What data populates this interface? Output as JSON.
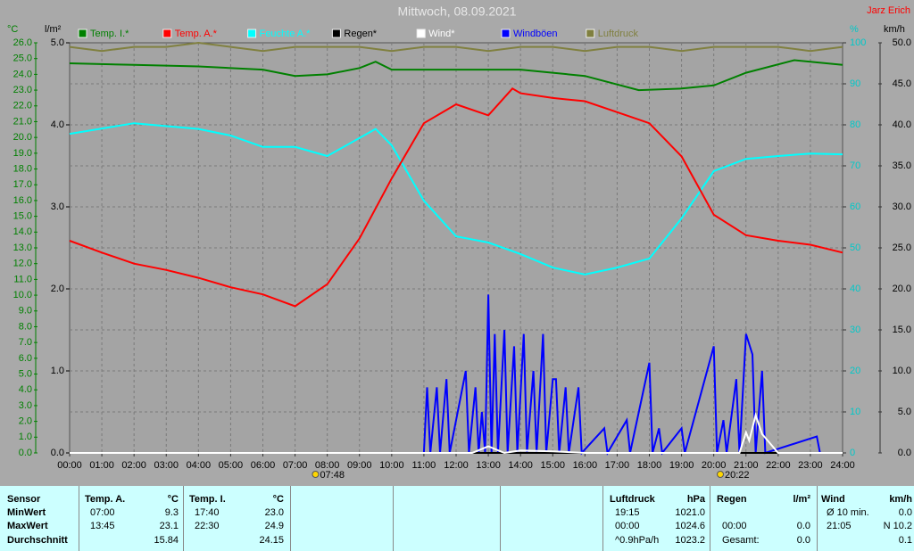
{
  "chart_data": {
    "type": "line",
    "title": "Mittwoch, 08.09.2021",
    "author": "Jarz Erich",
    "ylabel": "°C",
    "y_rain_label": "l/m²",
    "y2label": "%",
    "y3label": "km/h",
    "xlim": [
      0,
      24
    ],
    "xticks": [
      {
        "value": 0,
        "label": "00:00"
      },
      {
        "value": 1,
        "label": "01:00"
      },
      {
        "value": 2,
        "label": "02:00"
      },
      {
        "value": 3,
        "label": "03:00"
      },
      {
        "value": 4,
        "label": "04:00"
      },
      {
        "value": 5,
        "label": "05:00"
      },
      {
        "value": 6,
        "label": "06:00"
      },
      {
        "value": 7,
        "label": "07:00"
      },
      {
        "value": 8,
        "label": "08:00"
      },
      {
        "value": 9,
        "label": "09:00"
      },
      {
        "value": 10,
        "label": "10:00"
      },
      {
        "value": 11,
        "label": "11:00"
      },
      {
        "value": 12,
        "label": "12:00"
      },
      {
        "value": 13,
        "label": "13:00"
      },
      {
        "value": 14,
        "label": "14:00"
      },
      {
        "value": 15,
        "label": "15:00"
      },
      {
        "value": 16,
        "label": "16:00"
      },
      {
        "value": 17,
        "label": "17:00"
      },
      {
        "value": 18,
        "label": "18:00"
      },
      {
        "value": 19,
        "label": "19:00"
      },
      {
        "value": 20,
        "label": "20:00"
      },
      {
        "value": 21,
        "label": "21:00"
      },
      {
        "value": 22,
        "label": "22:00"
      },
      {
        "value": 23,
        "label": "23:00"
      },
      {
        "value": 24,
        "label": "24:00"
      }
    ],
    "ylim": [
      0,
      26
    ],
    "yticks": [
      {
        "value": 0,
        "label": "0.0"
      },
      {
        "value": 1,
        "label": "1.0"
      },
      {
        "value": 2,
        "label": "2.0"
      },
      {
        "value": 3,
        "label": "3.0"
      },
      {
        "value": 4,
        "label": "4.0"
      },
      {
        "value": 5,
        "label": "5.0"
      },
      {
        "value": 6,
        "label": "6.0"
      },
      {
        "value": 7,
        "label": "7.0"
      },
      {
        "value": 8,
        "label": "8.0"
      },
      {
        "value": 9,
        "label": "9.0"
      },
      {
        "value": 10,
        "label": "10.0"
      },
      {
        "value": 11,
        "label": "11.0"
      },
      {
        "value": 12,
        "label": "12.0"
      },
      {
        "value": 13,
        "label": "13.0"
      },
      {
        "value": 14,
        "label": "14.0"
      },
      {
        "value": 15,
        "label": "15.0"
      },
      {
        "value": 16,
        "label": "16.0"
      },
      {
        "value": 17,
        "label": "17.0"
      },
      {
        "value": 18,
        "label": "18.0"
      },
      {
        "value": 19,
        "label": "19.0"
      },
      {
        "value": 20,
        "label": "20.0"
      },
      {
        "value": 21,
        "label": "21.0"
      },
      {
        "value": 22,
        "label": "22.0"
      },
      {
        "value": 23,
        "label": "23.0"
      },
      {
        "value": 24,
        "label": "24.0"
      },
      {
        "value": 25,
        "label": "25.0"
      },
      {
        "value": 26,
        "label": "26.0"
      }
    ],
    "y_rain_lim": [
      0,
      5
    ],
    "y_rain_ticks": [
      {
        "value": 0,
        "label": "0.0"
      },
      {
        "value": 1,
        "label": "1.0"
      },
      {
        "value": 2,
        "label": "2.0"
      },
      {
        "value": 3,
        "label": "3.0"
      },
      {
        "value": 4,
        "label": "4.0"
      },
      {
        "value": 5,
        "label": "5.0"
      }
    ],
    "y2lim": [
      0,
      100
    ],
    "y2ticks": [
      0,
      10,
      20,
      30,
      40,
      50,
      60,
      70,
      80,
      90,
      100
    ],
    "y3lim": [
      0,
      50
    ],
    "y3ticks": [
      {
        "value": 0,
        "label": "0.0"
      },
      {
        "value": 5,
        "label": "5.0"
      },
      {
        "value": 10,
        "label": "10.0"
      },
      {
        "value": 15,
        "label": "15.0"
      },
      {
        "value": 20,
        "label": "20.0"
      },
      {
        "value": 25,
        "label": "25.0"
      },
      {
        "value": 30,
        "label": "30.0"
      },
      {
        "value": 35,
        "label": "35.0"
      },
      {
        "value": 40,
        "label": "40.0"
      },
      {
        "value": 45,
        "label": "45.0"
      },
      {
        "value": 50,
        "label": "50.0"
      }
    ],
    "grid": true,
    "annotations": [
      {
        "x": 7.8,
        "label": "07:48"
      },
      {
        "x": 20.37,
        "label": "20:22"
      }
    ],
    "series": [
      {
        "name": "Temp. I.*",
        "color": "#008000",
        "axis": "y",
        "x": [
          0,
          2,
          4,
          6,
          7,
          8,
          9,
          9.5,
          10,
          12,
          14,
          16,
          17.67,
          19,
          20,
          21,
          22.5,
          24
        ],
        "values": [
          24.7,
          24.6,
          24.5,
          24.3,
          23.9,
          24.0,
          24.4,
          24.8,
          24.3,
          24.3,
          24.3,
          23.9,
          23.0,
          23.1,
          23.3,
          24.1,
          24.9,
          24.6
        ]
      },
      {
        "name": "Temp. A.*",
        "color": "#ff0000",
        "axis": "y",
        "x": [
          0,
          1,
          2,
          3,
          4,
          5,
          6,
          7,
          8,
          9,
          10,
          11,
          12,
          13,
          13.75,
          14,
          15,
          16,
          17,
          18,
          19,
          20,
          21,
          22,
          23,
          24
        ],
        "values": [
          13.45,
          12.7,
          12.0,
          11.6,
          11.1,
          10.5,
          10.05,
          9.3,
          10.7,
          13.6,
          17.4,
          20.9,
          22.1,
          21.4,
          23.1,
          22.8,
          22.5,
          22.3,
          21.6,
          20.9,
          18.8,
          15.1,
          13.8,
          13.45,
          13.2,
          12.7
        ]
      },
      {
        "name": "Feuchte A.*",
        "color": "#00ffff",
        "axis": "y2",
        "x": [
          0,
          2,
          4,
          5,
          6,
          7,
          8,
          9.5,
          10,
          11,
          12,
          13,
          14,
          15,
          16,
          17,
          18,
          19,
          20,
          21,
          22,
          23,
          24
        ],
        "values": [
          77.8,
          80.4,
          79,
          77.4,
          74.6,
          74.6,
          72.4,
          79,
          75,
          61.5,
          52.8,
          51.3,
          48.5,
          45.2,
          43.5,
          45.2,
          47.4,
          57.2,
          68.7,
          71.7,
          72.4,
          73,
          72.8
        ]
      },
      {
        "name": "Regen*",
        "color": "#000000",
        "axis": "y_rain",
        "x": [
          0,
          24
        ],
        "values": [
          0,
          0
        ]
      },
      {
        "name": "Wind*",
        "color": "#ffffff",
        "axis": "y3",
        "x": [
          0,
          12.5,
          13,
          13.5,
          14,
          15,
          16,
          20.8,
          21,
          21.1,
          21.3,
          21.5,
          22,
          24
        ],
        "values": [
          0,
          0,
          0.8,
          0,
          0.3,
          0.2,
          0,
          0,
          2.5,
          1.5,
          4.6,
          2.3,
          0,
          0
        ]
      },
      {
        "name": "Windböen",
        "color": "#0000ff",
        "axis": "y3",
        "x": [
          11.0,
          11.1,
          11.2,
          11.4,
          11.5,
          11.7,
          11.8,
          12.3,
          12.4,
          12.6,
          12.7,
          12.8,
          12.9,
          13.0,
          13.1,
          13.2,
          13.3,
          13.5,
          13.6,
          13.8,
          13.9,
          14.1,
          14.2,
          14.4,
          14.5,
          14.7,
          14.8,
          15.0,
          15.1,
          15.2,
          15.4,
          15.5,
          15.8,
          15.9,
          16.6,
          16.7,
          17.3,
          17.4,
          18.0,
          18.1,
          18.3,
          18.4,
          19.0,
          19.1,
          20.0,
          20.1,
          20.3,
          20.4,
          20.7,
          20.8,
          21.0,
          21.2,
          21.3,
          21.5,
          21.6,
          23.2,
          23.3
        ],
        "values": [
          0,
          8,
          0,
          8,
          0,
          9,
          0,
          10,
          0,
          8,
          0,
          5,
          0,
          19.3,
          0,
          14.5,
          0,
          15,
          0,
          13,
          0,
          14.5,
          0,
          10,
          0,
          14.5,
          0,
          9,
          9,
          0,
          8,
          0,
          8,
          0,
          3,
          0,
          4,
          0,
          11,
          0,
          3,
          0,
          3,
          0,
          13,
          0,
          4,
          0,
          9,
          0,
          14.5,
          12,
          0,
          10,
          0,
          2,
          0
        ]
      },
      {
        "name": "Luftdruck",
        "color": "#808040",
        "axis": "y2",
        "x": [
          0,
          1,
          2,
          3,
          4,
          5,
          6,
          7,
          8,
          9,
          10,
          11,
          12,
          13,
          14,
          15,
          16,
          17,
          18,
          19,
          20,
          21,
          22,
          23,
          24
        ],
        "values": [
          99,
          98,
          99,
          99,
          100,
          99,
          98,
          99,
          99,
          99,
          98,
          99,
          99,
          98,
          99,
          99,
          98,
          99,
          99,
          98,
          99,
          99,
          99,
          98,
          99
        ]
      }
    ]
  },
  "table": {
    "row_labels": [
      "Sensor",
      "MinWert",
      "MaxWert",
      "Durchschnitt"
    ],
    "blocks": [
      {
        "title": "Temp. A.",
        "unit": "°C",
        "rows": [
          {
            "time": "07:00",
            "value": "9.3"
          },
          {
            "time": "13:45",
            "value": "23.1"
          },
          {
            "value": "15.84"
          }
        ]
      },
      {
        "title": "Temp. I.",
        "unit": "°C",
        "rows": [
          {
            "time": "17:40",
            "value": "23.0"
          },
          {
            "time": "22:30",
            "value": "24.9"
          },
          {
            "value": "24.15"
          }
        ]
      },
      {
        "title": "Luftdruck",
        "unit": "hPa",
        "rows": [
          {
            "time": "19:15",
            "value": "1021.0"
          },
          {
            "time": "00:00",
            "value": "1024.6"
          },
          {
            "time": "^0.9hPa/h",
            "value": "1023.2"
          }
        ]
      },
      {
        "title": "Regen",
        "unit": "l/m²",
        "rows": [
          null,
          {
            "time": "00:00",
            "value": "0.0"
          },
          {
            "time": "Gesamt:",
            "value": "0.0"
          }
        ]
      },
      {
        "title": "Wind",
        "unit": "km/h",
        "rows": [
          {
            "time": "Ø 10 min.",
            "value": "0.0"
          },
          {
            "time": "21:05",
            "value": "N 10.2"
          },
          {
            "value": "0.1"
          }
        ]
      }
    ]
  }
}
